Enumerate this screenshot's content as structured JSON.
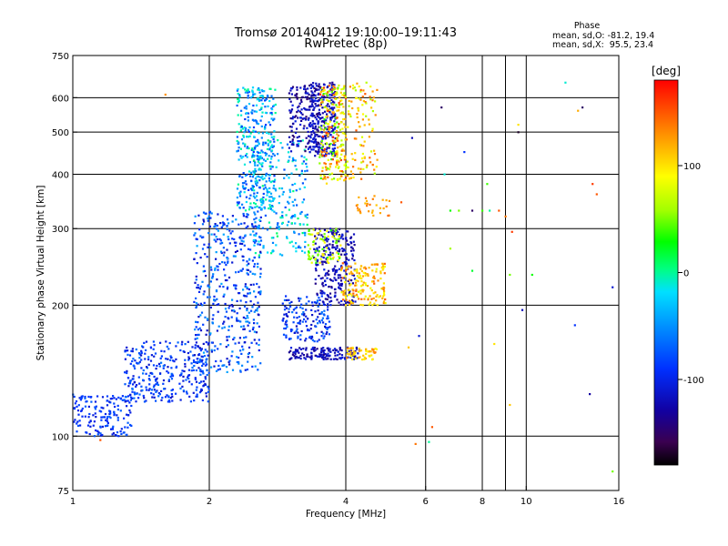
{
  "chart_data": {
    "type": "scatter",
    "title": "Tromsø 20140412 19:10:00–19:11:43",
    "subtitle": "RwPretec (8p)",
    "xlabel": "Frequency [MHz]",
    "ylabel": "Stationary phase Virtual Height [km]",
    "x_scale": "log",
    "y_scale": "log",
    "xlim": [
      1,
      16
    ],
    "ylim": [
      75,
      750
    ],
    "grid": true,
    "x_ticks": [
      1,
      2,
      4,
      6,
      8,
      10,
      16
    ],
    "x_grid": [
      2,
      4,
      6,
      8,
      9,
      10
    ],
    "y_ticks": [
      75,
      100,
      200,
      300,
      400,
      500,
      600,
      750
    ],
    "y_grid": [
      100,
      200,
      300,
      400,
      500,
      600
    ],
    "phase_box": {
      "title": "Phase",
      "line_o": "mean, sd,O: -81.2, 19.4",
      "line_x": "mean, sd,X:  95.5, 23.4"
    },
    "colorbar": {
      "label": "[deg]",
      "range": [
        -180,
        180
      ],
      "ticks": [
        100,
        0,
        -100
      ],
      "colormap": "rainbow"
    },
    "clusters": [
      {
        "x": [
          1.0,
          1.35
        ],
        "y": [
          100,
          125
        ],
        "n": 160,
        "phase": [
          -110,
          -70
        ]
      },
      {
        "x": [
          1.3,
          2.0
        ],
        "y": [
          120,
          165
        ],
        "n": 320,
        "phase": [
          -115,
          -60
        ]
      },
      {
        "x": [
          1.85,
          2.6
        ],
        "y": [
          140,
          330
        ],
        "n": 480,
        "phase": [
          -120,
          -40
        ]
      },
      {
        "x": [
          2.3,
          2.8
        ],
        "y": [
          330,
          640
        ],
        "n": 360,
        "phase": [
          -90,
          5
        ]
      },
      {
        "x": [
          2.5,
          3.3
        ],
        "y": [
          260,
          480
        ],
        "n": 220,
        "phase": [
          -80,
          10
        ]
      },
      {
        "x": [
          3.0,
          3.5
        ],
        "y": [
          450,
          640
        ],
        "n": 160,
        "phase": [
          -150,
          -100
        ]
      },
      {
        "x": [
          3.3,
          3.8
        ],
        "y": [
          440,
          650
        ],
        "n": 240,
        "phase": [
          -140,
          -100
        ]
      },
      {
        "x": [
          3.5,
          4.0
        ],
        "y": [
          380,
          640
        ],
        "n": 200,
        "phase": [
          30,
          170
        ]
      },
      {
        "x": [
          3.8,
          4.7
        ],
        "y": [
          390,
          650
        ],
        "n": 150,
        "phase": [
          60,
          150
        ]
      },
      {
        "x": [
          2.9,
          3.7
        ],
        "y": [
          165,
          210
        ],
        "n": 150,
        "phase": [
          -120,
          -60
        ]
      },
      {
        "x": [
          3.4,
          4.2
        ],
        "y": [
          200,
          300
        ],
        "n": 260,
        "phase": [
          -140,
          -100
        ]
      },
      {
        "x": [
          3.9,
          4.9
        ],
        "y": [
          200,
          250
        ],
        "n": 160,
        "phase": [
          80,
          150
        ]
      },
      {
        "x": [
          3.3,
          3.9
        ],
        "y": [
          250,
          300
        ],
        "n": 80,
        "phase": [
          30,
          100
        ]
      },
      {
        "x": [
          3.0,
          4.3
        ],
        "y": [
          150,
          160
        ],
        "n": 140,
        "phase": [
          -140,
          -100
        ]
      },
      {
        "x": [
          4.0,
          4.7
        ],
        "y": [
          150,
          160
        ],
        "n": 50,
        "phase": [
          90,
          140
        ]
      },
      {
        "x": [
          4.2,
          5.0
        ],
        "y": [
          320,
          360
        ],
        "n": 30,
        "phase": [
          110,
          150
        ]
      }
    ],
    "scatter_points": [
      {
        "x": 1.6,
        "y": 610,
        "phase": 130
      },
      {
        "x": 1.15,
        "y": 98,
        "phase": 150
      },
      {
        "x": 5.7,
        "y": 96,
        "phase": 140
      },
      {
        "x": 6.1,
        "y": 97,
        "phase": 0
      },
      {
        "x": 6.2,
        "y": 105,
        "phase": 150
      },
      {
        "x": 6.5,
        "y": 570,
        "phase": -150
      },
      {
        "x": 7.3,
        "y": 450,
        "phase": -90
      },
      {
        "x": 6.6,
        "y": 400,
        "phase": -10
      },
      {
        "x": 6.8,
        "y": 330,
        "phase": 30
      },
      {
        "x": 7.1,
        "y": 330,
        "phase": 50
      },
      {
        "x": 7.6,
        "y": 330,
        "phase": -150
      },
      {
        "x": 8.0,
        "y": 330,
        "phase": 40
      },
      {
        "x": 8.3,
        "y": 330,
        "phase": 0
      },
      {
        "x": 8.7,
        "y": 330,
        "phase": 150
      },
      {
        "x": 9.0,
        "y": 320,
        "phase": 140
      },
      {
        "x": 9.3,
        "y": 295,
        "phase": 160
      },
      {
        "x": 8.2,
        "y": 380,
        "phase": 40
      },
      {
        "x": 9.6,
        "y": 500,
        "phase": -170
      },
      {
        "x": 9.6,
        "y": 520,
        "phase": 100
      },
      {
        "x": 12.2,
        "y": 650,
        "phase": -10
      },
      {
        "x": 13.0,
        "y": 560,
        "phase": 120
      },
      {
        "x": 13.3,
        "y": 570,
        "phase": -150
      },
      {
        "x": 14.0,
        "y": 380,
        "phase": 160
      },
      {
        "x": 14.3,
        "y": 360,
        "phase": 150
      },
      {
        "x": 6.8,
        "y": 270,
        "phase": 60
      },
      {
        "x": 7.6,
        "y": 240,
        "phase": 20
      },
      {
        "x": 9.2,
        "y": 235,
        "phase": 50
      },
      {
        "x": 10.3,
        "y": 235,
        "phase": 30
      },
      {
        "x": 15.5,
        "y": 220,
        "phase": -110
      },
      {
        "x": 9.8,
        "y": 195,
        "phase": -120
      },
      {
        "x": 12.8,
        "y": 180,
        "phase": -90
      },
      {
        "x": 8.5,
        "y": 163,
        "phase": 100
      },
      {
        "x": 13.8,
        "y": 125,
        "phase": -130
      },
      {
        "x": 9.2,
        "y": 118,
        "phase": 110
      },
      {
        "x": 15.5,
        "y": 83,
        "phase": 50
      },
      {
        "x": 5.3,
        "y": 345,
        "phase": 150
      },
      {
        "x": 5.6,
        "y": 485,
        "phase": -120
      },
      {
        "x": 5.5,
        "y": 160,
        "phase": 110
      },
      {
        "x": 5.8,
        "y": 170,
        "phase": -110
      }
    ]
  }
}
